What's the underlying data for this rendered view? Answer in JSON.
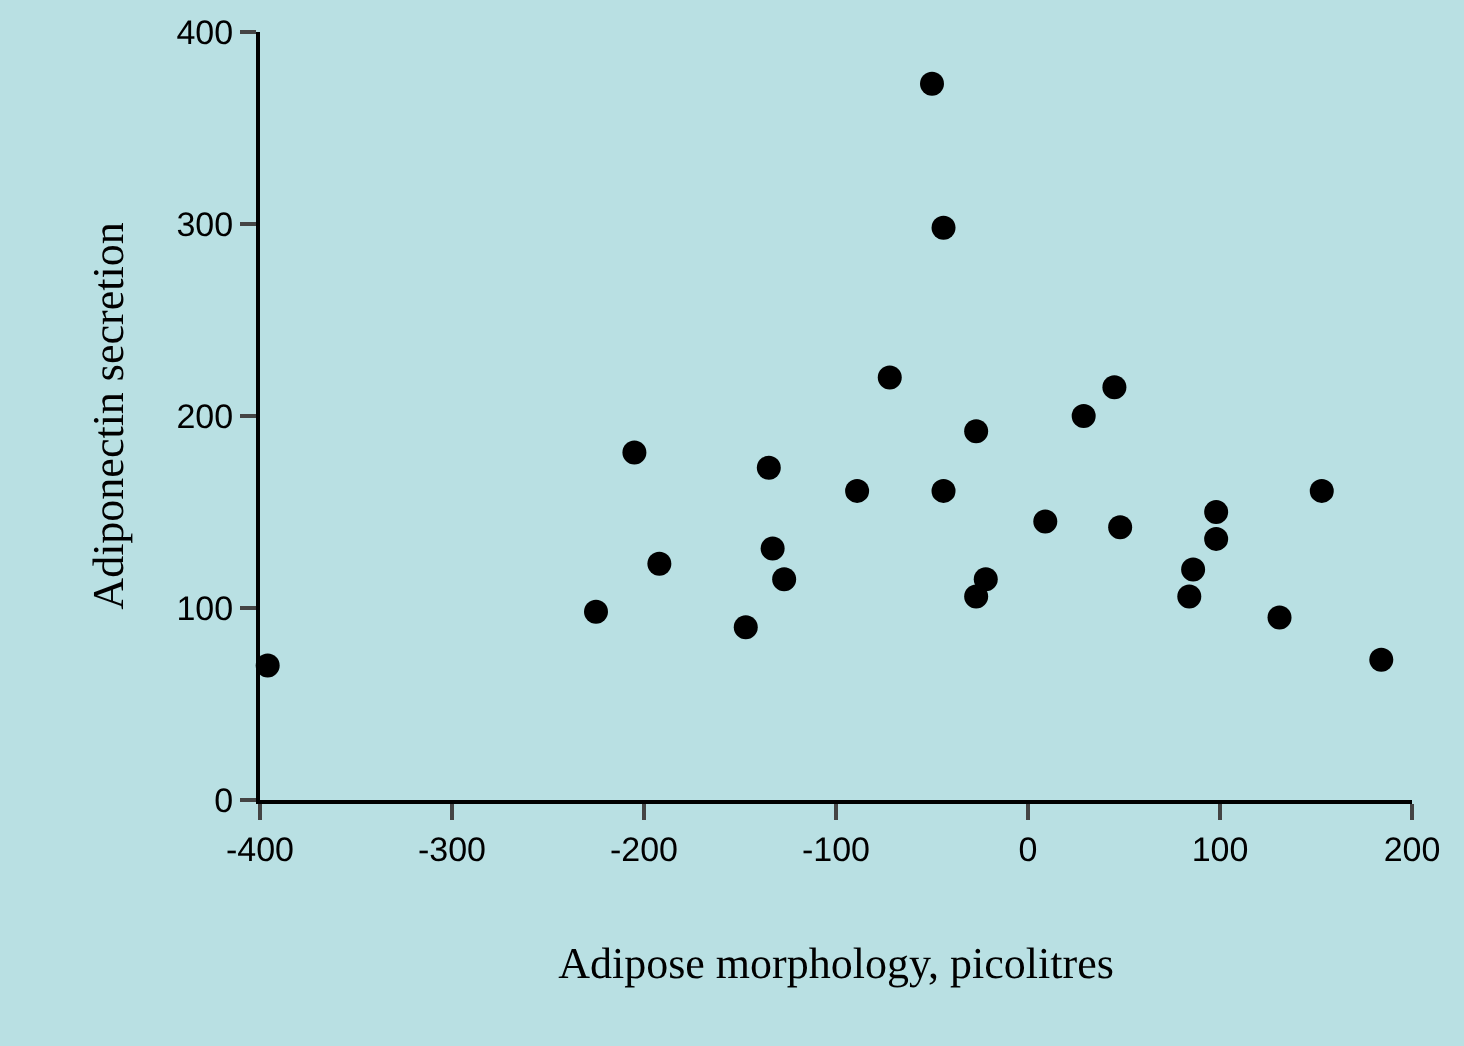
{
  "chart_data": {
    "type": "scatter",
    "xlabel": "Adipose morphology, picolitres",
    "ylabel": "Adiponectin secretion",
    "x": [
      -396,
      -225,
      -205,
      -192,
      -147,
      -135,
      -133,
      -127,
      -89,
      -72,
      -50,
      -44,
      -44,
      -27,
      9,
      48,
      29,
      45,
      -22,
      -27,
      98,
      98,
      86,
      84,
      153,
      131,
      184
    ],
    "series": [
      {
        "color": "#000000",
        "values": [
          70,
          98,
          181,
          123,
          90,
          173,
          131,
          115,
          161,
          220,
          373,
          298,
          161,
          192,
          145,
          142,
          200,
          215,
          115,
          106,
          150,
          136,
          120,
          106,
          161,
          95,
          73
        ]
      }
    ],
    "xlim": [
      -400,
      200
    ],
    "xticks": [
      -400,
      -300,
      -200,
      -100,
      0,
      100,
      200
    ],
    "ylim": [
      0,
      400
    ],
    "yticks": [
      0,
      100,
      200,
      300,
      400
    ],
    "grid": false,
    "legend": false,
    "marker": "circle"
  }
}
